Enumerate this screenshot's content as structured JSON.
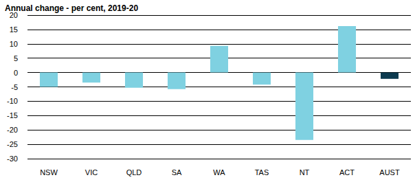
{
  "chart_data": {
    "type": "bar",
    "title": "Annual change - per cent, 2019-20",
    "categories": [
      "NSW",
      "VIC",
      "QLD",
      "SA",
      "WA",
      "TAS",
      "NT",
      "ACT",
      "AUST"
    ],
    "values": [
      -5.0,
      -3.5,
      -5.3,
      -5.8,
      9.3,
      -4.2,
      -23.5,
      16.2,
      -2.2
    ],
    "colors": [
      "#7fd1e1",
      "#7fd1e1",
      "#7fd1e1",
      "#7fd1e1",
      "#7fd1e1",
      "#7fd1e1",
      "#7fd1e1",
      "#7fd1e1",
      "#0c3a4f"
    ],
    "ylim": [
      -30,
      20
    ],
    "yticks": [
      -30,
      -25,
      -20,
      -15,
      -10,
      -5,
      0,
      5,
      10,
      15,
      20
    ],
    "grid": true
  }
}
